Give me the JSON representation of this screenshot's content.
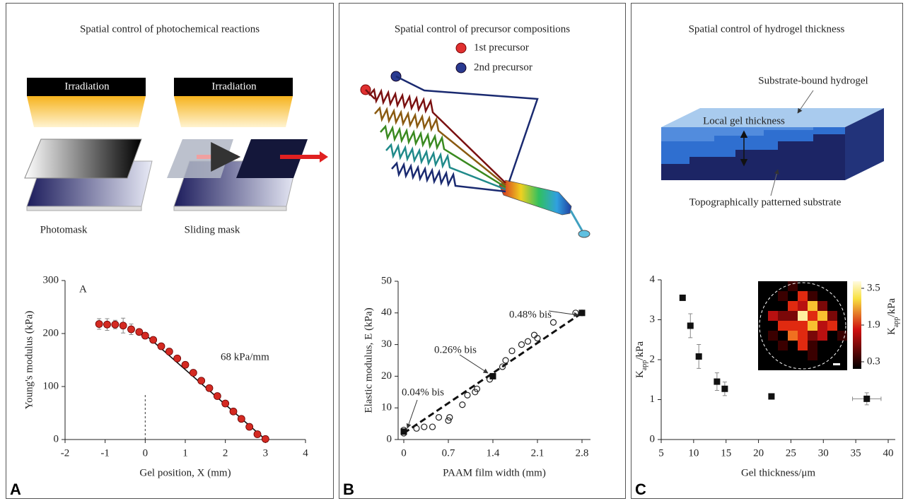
{
  "panels": [
    {
      "letter": "A",
      "title": "Spatial control of photochemical reactions",
      "labels": [
        "Irradiation",
        "Irradiation",
        "Photomask",
        "Sliding mask"
      ]
    },
    {
      "letter": "B",
      "title": "Spatial control of precursor compositions",
      "labels": [
        "1st precursor",
        "2nd precursor"
      ]
    },
    {
      "letter": "C",
      "title": "Spatial control of hydrogel thickness",
      "labels": [
        "Substrate-bound hydrogel",
        "Local gel thickness",
        "Topographically patterned substrate"
      ]
    }
  ],
  "chart_data": [
    {
      "type": "scatter",
      "x_label": "Gel position, X (mm)",
      "y_label": "Young's modulus (kPa)",
      "annotations": [
        "A",
        "68 kPa/mm"
      ],
      "xlim": [
        -2,
        4
      ],
      "ylim": [
        0,
        300
      ],
      "xticks": [
        -2,
        -1,
        0,
        1,
        2,
        3,
        4
      ],
      "yticks": [
        0,
        100,
        200,
        300
      ],
      "vline": 0,
      "series": [
        {
          "marker": "circle",
          "color": "#d42a22",
          "x": [
            -1.15,
            -0.95,
            -0.75,
            -0.55,
            -0.35,
            -0.15,
            0,
            0.2,
            0.4,
            0.6,
            0.8,
            1.0,
            1.2,
            1.4,
            1.6,
            1.8,
            2.0,
            2.2,
            2.4,
            2.6,
            2.8,
            3.0
          ],
          "values": [
            218,
            217,
            217,
            215,
            208,
            203,
            196,
            188,
            176,
            166,
            153,
            141,
            126,
            111,
            97,
            82,
            68,
            53,
            39,
            24,
            10,
            1
          ],
          "errors": [
            10,
            11,
            8,
            14,
            10,
            5,
            6,
            5,
            5,
            6,
            5,
            5,
            5,
            4,
            5,
            4,
            4,
            4,
            4,
            4,
            4,
            3
          ]
        }
      ],
      "fit": {
        "x": [
          0,
          3
        ],
        "values": [
          198,
          0
        ],
        "style": "solid"
      }
    },
    {
      "type": "scatter",
      "x_label": "PAAM film width (mm)",
      "y_label": "Elastic modulus, E (kPa)",
      "annotations": [
        "0.04% bis",
        "0.26% bis",
        "0.48% bis"
      ],
      "xlim": [
        0,
        2.8
      ],
      "ylim": [
        0,
        50
      ],
      "xticks": [
        0,
        0.7,
        1.4,
        2.1,
        2.8
      ],
      "yticks": [
        0,
        10,
        20,
        30,
        40,
        50
      ],
      "series": [
        {
          "marker": "open-circle",
          "color": "#222222",
          "x": [
            0,
            0,
            0.2,
            0.32,
            0.45,
            0.55,
            0.7,
            0.72,
            0.92,
            1.0,
            1.12,
            1.15,
            1.35,
            1.55,
            1.6,
            1.7,
            1.85,
            1.95,
            2.05,
            2.1,
            2.35,
            2.7,
            2.8
          ],
          "values": [
            2,
            3,
            3.5,
            4,
            4,
            7,
            6,
            7,
            11,
            14,
            15,
            16,
            19,
            23,
            25,
            28,
            30,
            31,
            33,
            32,
            37,
            40,
            40
          ]
        },
        {
          "marker": "square",
          "color": "#111111",
          "x": [
            0,
            1.4,
            2.8
          ],
          "values": [
            2.5,
            20,
            40
          ]
        }
      ],
      "fit": {
        "x": [
          0,
          2.8
        ],
        "values": [
          2,
          40
        ],
        "style": "dashed"
      }
    },
    {
      "type": "scatter",
      "x_label": "Gel thickness/μm",
      "y_label": [
        "K",
        "app",
        "/kPa"
      ],
      "xlim": [
        5,
        40
      ],
      "ylim": [
        0,
        4
      ],
      "xticks": [
        5,
        10,
        15,
        20,
        25,
        30,
        35,
        40
      ],
      "yticks": [
        0,
        1,
        2,
        3,
        4
      ],
      "series": [
        {
          "marker": "square",
          "color": "#111111",
          "x": [
            8.3,
            9.5,
            10.8,
            13.6,
            14.8,
            22,
            36.7
          ],
          "values": [
            3.55,
            2.85,
            2.08,
            1.45,
            1.27,
            1.08,
            1.02
          ],
          "errors": [
            null,
            0.3,
            0.3,
            0.22,
            0.17,
            0.07,
            0.15
          ],
          "xerrors": [
            null,
            null,
            null,
            null,
            null,
            null,
            2.2
          ]
        }
      ],
      "colorbar": {
        "ticks": [
          3.5,
          1.9,
          0.3
        ],
        "label": [
          "K",
          "app",
          "/kPa"
        ]
      }
    }
  ]
}
